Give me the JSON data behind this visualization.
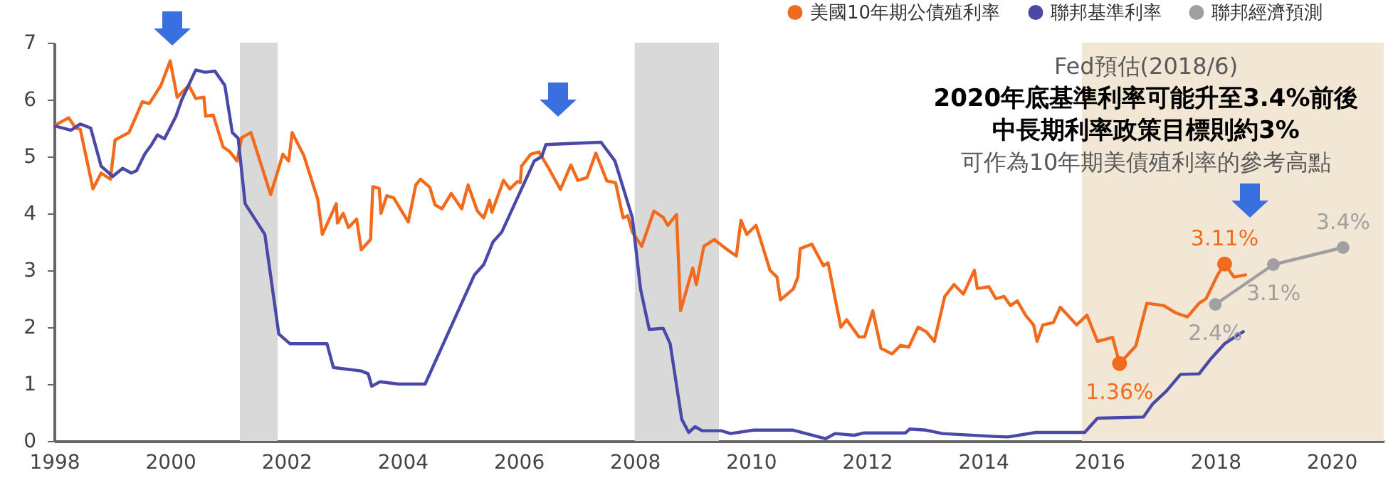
{
  "chart_data": {
    "type": "line",
    "legend": "top right",
    "xlim": [
      1998,
      2020.9
    ],
    "xticks": [
      1998,
      2000,
      2002,
      2004,
      2006,
      2008,
      2010,
      2012,
      2014,
      2016,
      2018,
      2020
    ],
    "ylim": [
      0,
      7
    ],
    "yticks": [
      0,
      1,
      2,
      3,
      4,
      5,
      6,
      7
    ],
    "series": [
      {
        "name": "美國10年期公債殖利率",
        "color": "#f26b1d",
        "x": [
          1998.0,
          1998.25,
          1998.37,
          1998.45,
          1998.67,
          1998.81,
          1998.97,
          1999.05,
          1999.29,
          1999.52,
          1999.64,
          1999.84,
          2000.0,
          2000.12,
          2000.32,
          2000.44,
          2000.58,
          2000.61,
          2000.74,
          2000.91,
          2001.03,
          2001.15,
          2001.23,
          2001.39,
          2001.73,
          2001.94,
          2002.04,
          2002.1,
          2002.3,
          2002.54,
          2002.62,
          2002.86,
          2002.88,
          2002.98,
          2003.07,
          2003.21,
          2003.29,
          2003.45,
          2003.49,
          2003.6,
          2003.63,
          2003.73,
          2003.85,
          2004.1,
          2004.23,
          2004.31,
          2004.47,
          2004.56,
          2004.68,
          2004.84,
          2005.02,
          2005.13,
          2005.29,
          2005.4,
          2005.5,
          2005.54,
          2005.74,
          2005.85,
          2005.98,
          2006.03,
          2006.05,
          2006.21,
          2006.35,
          2006.52,
          2006.72,
          2006.9,
          2007.02,
          2007.18,
          2007.33,
          2007.52,
          2007.67,
          2007.8,
          2007.88,
          2007.96,
          2008.12,
          2008.33,
          2008.49,
          2008.57,
          2008.72,
          2008.79,
          2009.0,
          2009.06,
          2009.19,
          2009.37,
          2009.57,
          2009.75,
          2009.83,
          2009.93,
          2010.09,
          2010.33,
          2010.45,
          2010.51,
          2010.73,
          2010.81,
          2010.85,
          2011.05,
          2011.25,
          2011.33,
          2011.55,
          2011.65,
          2011.86,
          2011.96,
          2012.1,
          2012.24,
          2012.43,
          2012.58,
          2012.72,
          2012.88,
          2013.02,
          2013.16,
          2013.34,
          2013.5,
          2013.66,
          2013.85,
          2013.9,
          2014.1,
          2014.22,
          2014.36,
          2014.47,
          2014.59,
          2014.73,
          2014.87,
          2014.93,
          2015.03,
          2015.21,
          2015.33,
          2015.61,
          2015.79,
          2015.97,
          2016.23,
          2016.35,
          2016.63,
          2016.82,
          2017.11,
          2017.32,
          2017.52,
          2017.72,
          2017.84,
          2018.04,
          2018.16,
          2018.32,
          2018.52
        ],
        "values": [
          5.54,
          5.68,
          5.5,
          5.48,
          4.43,
          4.71,
          4.6,
          5.29,
          5.42,
          5.96,
          5.93,
          6.25,
          6.68,
          6.04,
          6.25,
          6.02,
          6.04,
          5.71,
          5.73,
          5.17,
          5.08,
          4.92,
          5.33,
          5.42,
          4.33,
          5.04,
          4.92,
          5.42,
          5.02,
          4.25,
          3.63,
          4.17,
          3.83,
          4.0,
          3.75,
          3.9,
          3.36,
          3.54,
          4.47,
          4.44,
          4.0,
          4.31,
          4.27,
          3.85,
          4.5,
          4.6,
          4.46,
          4.15,
          4.08,
          4.35,
          4.08,
          4.5,
          4.04,
          3.92,
          4.23,
          4.02,
          4.58,
          4.43,
          4.56,
          4.54,
          4.83,
          5.04,
          5.08,
          4.79,
          4.42,
          4.85,
          4.58,
          4.63,
          5.06,
          4.57,
          4.54,
          3.92,
          3.96,
          3.67,
          3.42,
          4.04,
          3.93,
          3.79,
          3.98,
          2.29,
          3.04,
          2.75,
          3.42,
          3.54,
          3.38,
          3.25,
          3.88,
          3.63,
          3.79,
          3.0,
          2.88,
          2.48,
          2.67,
          2.88,
          3.38,
          3.46,
          3.08,
          3.13,
          2.0,
          2.13,
          1.83,
          1.83,
          2.29,
          1.63,
          1.53,
          1.68,
          1.65,
          2.0,
          1.92,
          1.75,
          2.54,
          2.75,
          2.58,
          3.0,
          2.68,
          2.71,
          2.5,
          2.54,
          2.38,
          2.46,
          2.21,
          2.04,
          1.75,
          2.04,
          2.08,
          2.35,
          2.04,
          2.21,
          1.75,
          1.82,
          1.36,
          1.67,
          2.42,
          2.38,
          2.25,
          2.18,
          2.42,
          2.5,
          2.92,
          3.11,
          2.88,
          2.92
        ]
      },
      {
        "name": "聯邦基準利率",
        "color": "#4b49a8",
        "x": [
          1998.0,
          1998.29,
          1998.45,
          1998.63,
          1998.81,
          1999.01,
          1999.18,
          1999.33,
          1999.42,
          1999.56,
          1999.68,
          1999.78,
          1999.9,
          2000.1,
          2000.2,
          2000.44,
          2000.6,
          2000.77,
          2000.94,
          2001.07,
          2001.17,
          2001.29,
          2001.63,
          2001.87,
          2002.06,
          2002.7,
          2002.81,
          2003.29,
          2003.41,
          2003.47,
          2003.61,
          2003.93,
          2004.39,
          2005.24,
          2005.4,
          2005.56,
          2005.71,
          2006.27,
          2006.4,
          2006.47,
          2007.42,
          2007.66,
          2007.96,
          2008.1,
          2008.25,
          2008.49,
          2008.61,
          2008.81,
          2008.93,
          2009.04,
          2009.16,
          2009.49,
          2009.65,
          2010.05,
          2010.73,
          2011.29,
          2011.45,
          2011.78,
          2011.94,
          2012.66,
          2012.74,
          2013.02,
          2013.3,
          2014.18,
          2014.43,
          2014.91,
          2015.75,
          2015.97,
          2016.76,
          2016.92,
          2017.16,
          2017.4,
          2017.72,
          2017.92,
          2018.16,
          2018.48
        ],
        "values": [
          5.54,
          5.46,
          5.57,
          5.5,
          4.83,
          4.65,
          4.79,
          4.71,
          4.75,
          5.04,
          5.21,
          5.38,
          5.31,
          5.71,
          6.0,
          6.52,
          6.48,
          6.5,
          6.25,
          5.42,
          5.32,
          4.17,
          3.63,
          1.88,
          1.71,
          1.71,
          1.29,
          1.23,
          1.18,
          0.96,
          1.04,
          1.0,
          1.0,
          2.92,
          3.1,
          3.5,
          3.67,
          4.92,
          5.0,
          5.21,
          5.25,
          4.92,
          3.92,
          2.67,
          1.96,
          1.98,
          1.71,
          0.38,
          0.15,
          0.25,
          0.18,
          0.18,
          0.13,
          0.19,
          0.19,
          0.04,
          0.13,
          0.1,
          0.14,
          0.14,
          0.21,
          0.19,
          0.13,
          0.08,
          0.07,
          0.15,
          0.15,
          0.4,
          0.42,
          0.65,
          0.88,
          1.17,
          1.18,
          1.44,
          1.71,
          1.92
        ]
      },
      {
        "name": "聯邦經濟預測",
        "color": "#a0a0a0",
        "marker": "circle",
        "x": [
          2018.0,
          2019.0,
          2020.2
        ],
        "values": [
          2.4,
          3.1,
          3.4
        ]
      }
    ],
    "bands": [
      {
        "axis": "x",
        "from": 2001.2,
        "to": 2001.85,
        "color": "#d9d9d9"
      },
      {
        "axis": "x",
        "from": 2008.0,
        "to": 2009.45,
        "color": "#d9d9d9"
      },
      {
        "axis": "x",
        "from": 2015.7,
        "to": 2020.9,
        "color": "#f2e6d5"
      }
    ],
    "annotations": [
      "Fed預估(2018/6)",
      "2020年底基準利率可能升至3.4%前後",
      "中長期利率政策目標則約3%",
      "可作為10年期美債殖利率的參考高點",
      {
        "text": "3.11%",
        "x": 2018.16,
        "y": 3.11
      },
      {
        "text": "1.36%",
        "x": 2016.35,
        "y": 1.36
      },
      {
        "text": "2.4%",
        "x": 2018.0,
        "y": 2.4
      },
      {
        "text": "3.1%",
        "x": 2019.0,
        "y": 3.1
      },
      {
        "text": "3.4%",
        "x": 2020.2,
        "y": 3.4
      }
    ]
  }
}
